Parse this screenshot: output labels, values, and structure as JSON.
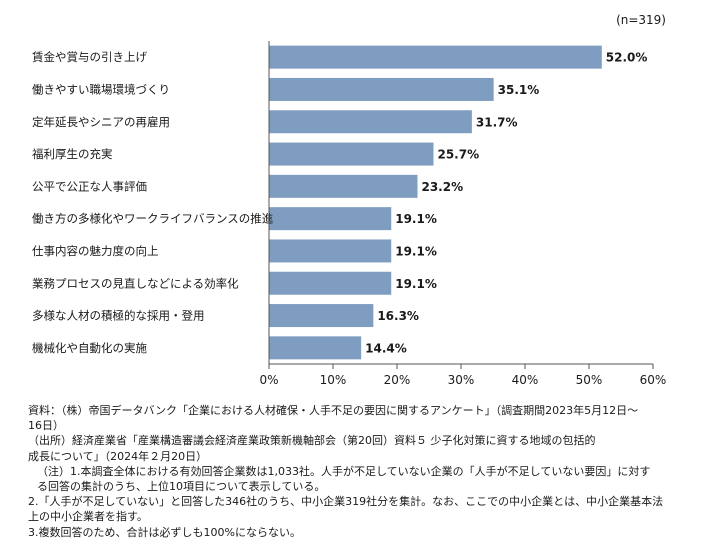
{
  "chart_data": {
    "type": "bar",
    "orientation": "horizontal",
    "sample_size": "(n=319)",
    "categories": [
      "賃金や賞与の引き上げ",
      "働きやすい職場環境づくり",
      "定年延長やシニアの再雇用",
      "福利厚生の充実",
      "公平で公正な人事評価",
      "働き方の多様化やワークライフバランスの推進",
      "仕事内容の魅力度の向上",
      "業務プロセスの見直しなどによる効率化",
      "多様な人材の積極的な採用・登用",
      "機械化や自動化の実施"
    ],
    "values": [
      52.0,
      35.1,
      31.7,
      25.7,
      23.2,
      19.1,
      19.1,
      19.1,
      16.3,
      14.4
    ],
    "value_labels": [
      "52.0%",
      "35.1%",
      "31.7%",
      "25.7%",
      "23.2%",
      "19.1%",
      "19.1%",
      "19.1%",
      "16.3%",
      "14.4%"
    ],
    "xlim": [
      0,
      60
    ],
    "x_ticks": [
      "0%",
      "10%",
      "20%",
      "30%",
      "40%",
      "50%",
      "60%"
    ],
    "bar_color": "#7f9dc0",
    "grid": false
  },
  "notes": {
    "source_1": "資料：（株）帝国データバンク「企業における人材確保・人手不足の要因に関するアンケート」（調査期間2023年5月12日～",
    "source_2": "16日）",
    "origin_1": "（出所）経済産業省「産業構造審議会経済産業政策新機軸部会（第20回）資料５ 少子化対策に資する地域の包括的",
    "origin_2": "成長について」（2024年２月20日）",
    "note1_1": "（注）1.本調査全体における有効回答企業数は1,033社。人手が不足していない企業の「人手が不足していない要因」に対す",
    "note1_2": "る回答の集計のうち、上位10項目について表示している。",
    "note2_1": "2.「人手が不足していない」と回答した346社のうち、中小企業319社分を集計。なお、ここでの中小企業とは、中小企業基本法",
    "note2_2": "上の中小企業者を指す。",
    "note3": "3.複数回答のため、合計は必ずしも100%にならない。"
  }
}
